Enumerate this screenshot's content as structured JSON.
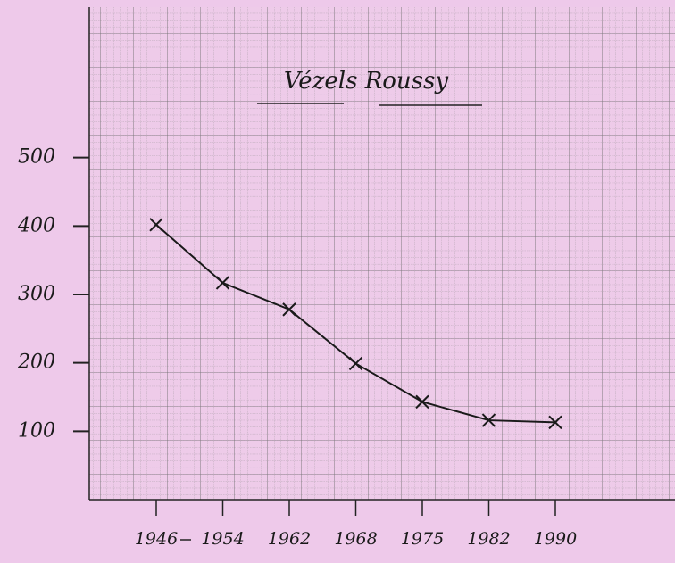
{
  "chart_data": {
    "type": "line",
    "title": "Vézels Roussy",
    "categories": [
      "1946",
      "1954",
      "1962",
      "1968",
      "1975",
      "1982",
      "1990"
    ],
    "values": [
      402,
      317,
      278,
      199,
      143,
      116,
      113
    ],
    "color": "#1a1a1a",
    "ylim": [
      0,
      720
    ],
    "yticks": [
      100,
      200,
      300,
      400,
      500
    ],
    "grid": true
  }
}
